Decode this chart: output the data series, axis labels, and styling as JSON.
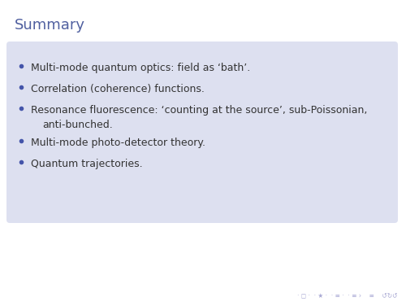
{
  "title": "Summary",
  "title_color": "#5060a0",
  "title_fontsize": 13,
  "background_color": "#ffffff",
  "box_color": "#dde0f0",
  "text_color": "#333333",
  "bullet_color": "#4455aa",
  "bullet_items_line1": [
    "Multi-mode quantum optics: field as ‘bath’.",
    "Correlation (coherence) functions.",
    "Resonance fluorescence: ‘counting at the source’, sub-Poissonian,",
    "Multi-mode photo-detector theory.",
    "Quantum trajectories."
  ],
  "bullet_item3_line2": "anti-bunched.",
  "text_fontsize": 9,
  "footer_color": "#9999cc",
  "footer_fontsize": 5.5
}
